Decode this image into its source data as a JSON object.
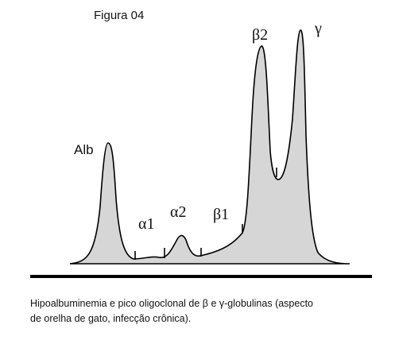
{
  "figure": {
    "title": "Figura 04",
    "peaks": [
      "Alb",
      "α1",
      "α2",
      "β1",
      "β2",
      "γ"
    ],
    "caption": [
      "Hipoalbuminemia e pico oligoclonal de β e γ-globulinas (aspecto",
      "de orelha de gato, infecção crônica)."
    ]
  }
}
